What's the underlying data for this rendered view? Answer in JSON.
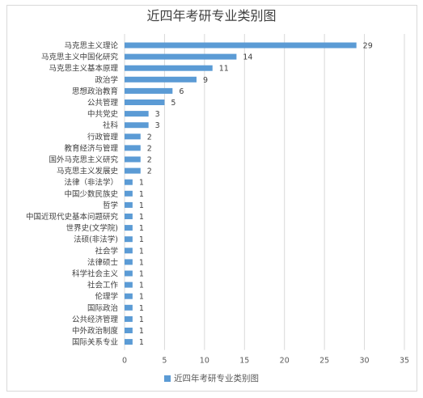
{
  "chart_data": {
    "type": "bar",
    "orientation": "horizontal",
    "title": "近四年考研专业类别图",
    "categories": [
      "马克思主义理论",
      "马克思主义中国化研究",
      "马克思主义基本原理",
      "政治学",
      "思想政治教育",
      "公共管理",
      "中共党史",
      "社科",
      "行政管理",
      "教育经济与管理",
      "国外马克思主义研究",
      "马克思主义发展史",
      "法律（非法学）",
      "中国少数民族史",
      "哲学",
      "中国近现代史基本问题研究",
      "世界史(文学院)",
      "法硕(非法学)",
      "社会学",
      "法律硕士",
      "科学社会主义",
      "社会工作",
      "伦理学",
      "国际政治",
      "公共经济管理",
      "中外政治制度",
      "国际关系专业"
    ],
    "series": [
      {
        "name": "近四年考研专业类别图",
        "values": [
          29,
          14,
          11,
          9,
          6,
          5,
          3,
          3,
          2,
          2,
          2,
          2,
          1,
          1,
          1,
          1,
          1,
          1,
          1,
          1,
          1,
          1,
          1,
          1,
          1,
          1,
          1
        ]
      }
    ],
    "xlim": [
      0,
      35
    ],
    "xticks": [
      0,
      5,
      10,
      15,
      20,
      25,
      30,
      35
    ],
    "legend": "bottom",
    "grid": true,
    "bar_color": "#5b9bd5"
  }
}
